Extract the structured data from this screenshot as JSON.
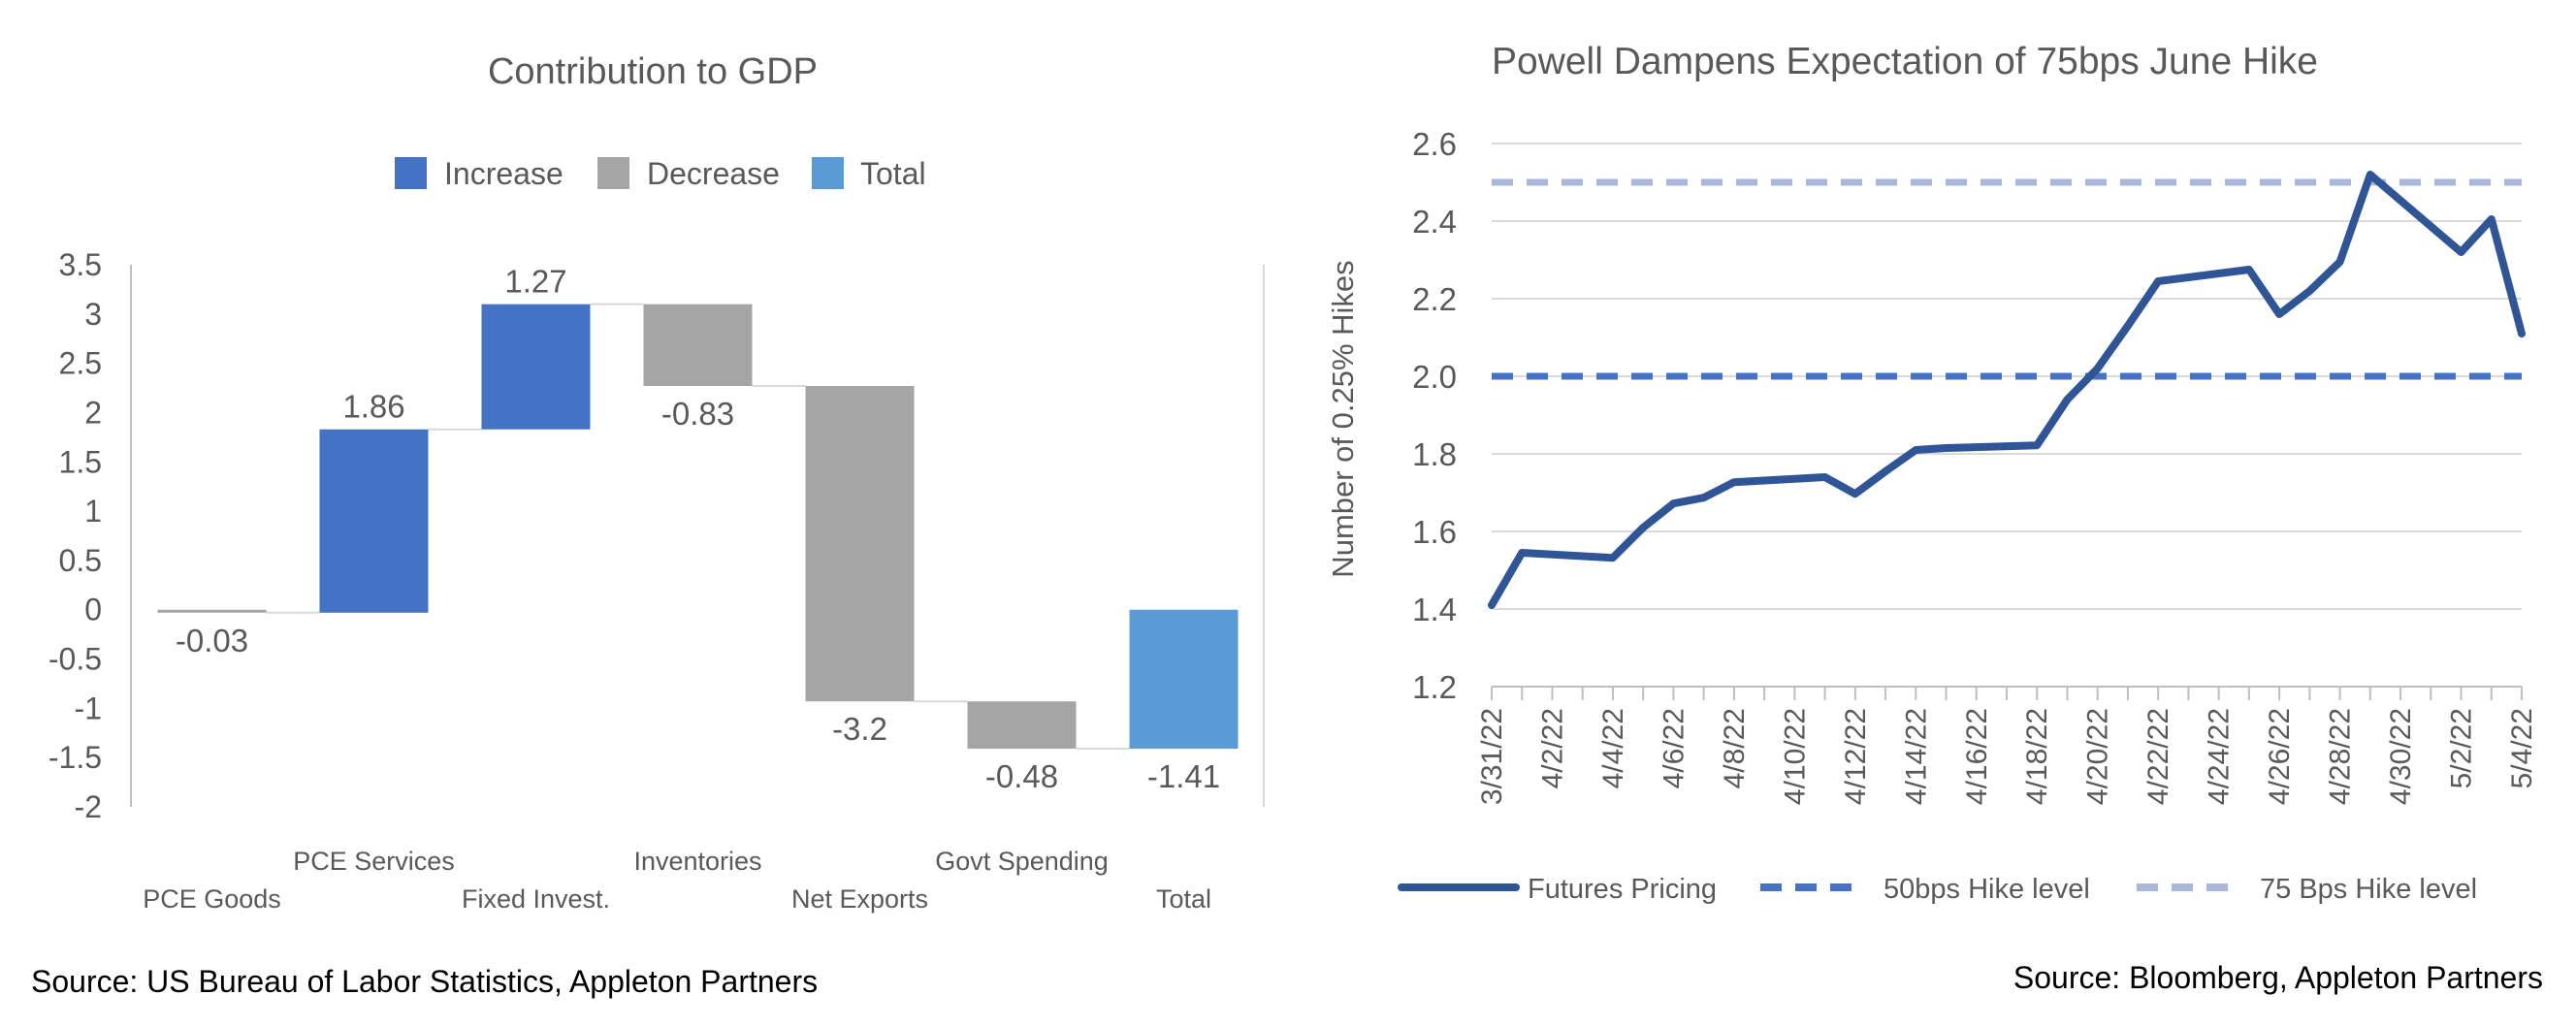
{
  "footer": {
    "left_source": "Source: US Bureau of Labor Statistics, Appleton Partners",
    "right_source": "Source: Bloomberg, Appleton Partners"
  },
  "colors": {
    "increase": "#4472C4",
    "decrease": "#A5A5A5",
    "total": "#5B9BD5",
    "futures": "#2F5597",
    "hike50": "#4472C4",
    "hike75": "#A9B7DC",
    "grid": "#D9D9D9",
    "axis_text": "#595959"
  },
  "chart_data": [
    {
      "type": "bar",
      "subtype": "waterfall",
      "title": "Contribution to GDP",
      "legend": [
        "Increase",
        "Decrease",
        "Total"
      ],
      "legend_position": "top",
      "categories": [
        "PCE Goods",
        "PCE Services",
        "Fixed Invest.",
        "Inventories",
        "Net Exports",
        "Govt Spending",
        "Total"
      ],
      "values": [
        -0.03,
        1.86,
        1.27,
        -0.83,
        -3.2,
        -0.48,
        -1.41
      ],
      "value_labels": [
        "-0.03",
        "1.86",
        "1.27",
        "-0.83",
        "-3.2",
        "-0.48",
        "-1.41"
      ],
      "kinds": [
        "decrease",
        "increase",
        "increase",
        "decrease",
        "decrease",
        "decrease",
        "total"
      ],
      "ylim": [
        -2,
        3.5
      ],
      "yticks": [
        -2,
        -1.5,
        -1,
        -0.5,
        0,
        0.5,
        1,
        1.5,
        2,
        2.5,
        3,
        3.5
      ],
      "ytick_labels": [
        "-2",
        "-1.5",
        "-1",
        "-0.5",
        "0",
        "0.5",
        "1",
        "1.5",
        "2",
        "2.5",
        "3",
        "3.5"
      ],
      "grid": false
    },
    {
      "type": "line",
      "title": "Powell Dampens Expectation of 75bps June Hike",
      "ylabel": "Number of 0.25% Hikes",
      "ylim": [
        1.2,
        2.6
      ],
      "yticks": [
        "1.2",
        "1.4",
        "1.6",
        "1.8",
        "2.0",
        "2.2",
        "2.4",
        "2.6"
      ],
      "xtick_labels": [
        "3/31/22",
        "4/2/22",
        "4/4/22",
        "4/6/22",
        "4/8/22",
        "4/10/22",
        "4/12/22",
        "4/14/22",
        "4/16/22",
        "4/18/22",
        "4/20/22",
        "4/22/22",
        "4/24/22",
        "4/26/22",
        "4/28/22",
        "4/30/22",
        "5/2/22",
        "5/4/22"
      ],
      "x_range": [
        "3/31/22",
        "5/4/22"
      ],
      "grid": true,
      "legend_position": "bottom",
      "series": [
        {
          "name": "Futures Pricing",
          "style": "solid",
          "x": [
            "3/31/22",
            "4/1/22",
            "4/4/22",
            "4/5/22",
            "4/6/22",
            "4/7/22",
            "4/8/22",
            "4/11/22",
            "4/12/22",
            "4/13/22",
            "4/14/22",
            "4/15/22",
            "4/18/22",
            "4/19/22",
            "4/20/22",
            "4/21/22",
            "4/22/22",
            "4/25/22",
            "4/26/22",
            "4/27/22",
            "4/28/22",
            "4/29/22",
            "5/2/22",
            "5/3/22",
            "5/4/22"
          ],
          "values": [
            1.41,
            1.545,
            1.532,
            1.61,
            1.672,
            1.687,
            1.727,
            1.74,
            1.697,
            1.755,
            1.81,
            1.815,
            1.822,
            1.94,
            2.02,
            2.13,
            2.245,
            2.275,
            2.16,
            2.22,
            2.295,
            2.52,
            2.32,
            2.405,
            2.11
          ]
        },
        {
          "name": "50bps Hike level",
          "style": "dashed",
          "x": [
            "3/31/22",
            "5/4/22"
          ],
          "values": [
            2.0,
            2.0
          ]
        },
        {
          "name": "75 Bps Hike level",
          "style": "dashed",
          "x": [
            "3/31/22",
            "5/4/22"
          ],
          "values": [
            2.5,
            2.5
          ]
        }
      ]
    }
  ]
}
